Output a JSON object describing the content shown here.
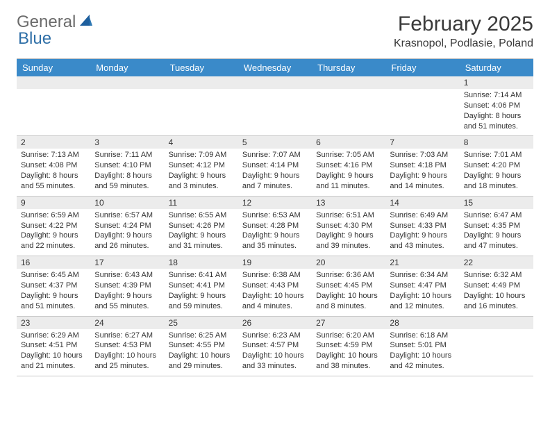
{
  "logo": {
    "word1": "General",
    "word2": "Blue",
    "sail_color": "#1e5f9e"
  },
  "title": {
    "month": "February 2025",
    "location": "Krasnopol, Podlasie, Poland"
  },
  "colors": {
    "header_bg": "#3a8ac9",
    "header_text": "#ffffff",
    "daynum_bg": "#ececec",
    "border": "#c8c8c8",
    "text": "#333333"
  },
  "weekdays": [
    "Sunday",
    "Monday",
    "Tuesday",
    "Wednesday",
    "Thursday",
    "Friday",
    "Saturday"
  ],
  "weeks": [
    [
      null,
      null,
      null,
      null,
      null,
      null,
      {
        "n": "1",
        "sr": "Sunrise: 7:14 AM",
        "ss": "Sunset: 4:06 PM",
        "dl": "Daylight: 8 hours and 51 minutes."
      }
    ],
    [
      {
        "n": "2",
        "sr": "Sunrise: 7:13 AM",
        "ss": "Sunset: 4:08 PM",
        "dl": "Daylight: 8 hours and 55 minutes."
      },
      {
        "n": "3",
        "sr": "Sunrise: 7:11 AM",
        "ss": "Sunset: 4:10 PM",
        "dl": "Daylight: 8 hours and 59 minutes."
      },
      {
        "n": "4",
        "sr": "Sunrise: 7:09 AM",
        "ss": "Sunset: 4:12 PM",
        "dl": "Daylight: 9 hours and 3 minutes."
      },
      {
        "n": "5",
        "sr": "Sunrise: 7:07 AM",
        "ss": "Sunset: 4:14 PM",
        "dl": "Daylight: 9 hours and 7 minutes."
      },
      {
        "n": "6",
        "sr": "Sunrise: 7:05 AM",
        "ss": "Sunset: 4:16 PM",
        "dl": "Daylight: 9 hours and 11 minutes."
      },
      {
        "n": "7",
        "sr": "Sunrise: 7:03 AM",
        "ss": "Sunset: 4:18 PM",
        "dl": "Daylight: 9 hours and 14 minutes."
      },
      {
        "n": "8",
        "sr": "Sunrise: 7:01 AM",
        "ss": "Sunset: 4:20 PM",
        "dl": "Daylight: 9 hours and 18 minutes."
      }
    ],
    [
      {
        "n": "9",
        "sr": "Sunrise: 6:59 AM",
        "ss": "Sunset: 4:22 PM",
        "dl": "Daylight: 9 hours and 22 minutes."
      },
      {
        "n": "10",
        "sr": "Sunrise: 6:57 AM",
        "ss": "Sunset: 4:24 PM",
        "dl": "Daylight: 9 hours and 26 minutes."
      },
      {
        "n": "11",
        "sr": "Sunrise: 6:55 AM",
        "ss": "Sunset: 4:26 PM",
        "dl": "Daylight: 9 hours and 31 minutes."
      },
      {
        "n": "12",
        "sr": "Sunrise: 6:53 AM",
        "ss": "Sunset: 4:28 PM",
        "dl": "Daylight: 9 hours and 35 minutes."
      },
      {
        "n": "13",
        "sr": "Sunrise: 6:51 AM",
        "ss": "Sunset: 4:30 PM",
        "dl": "Daylight: 9 hours and 39 minutes."
      },
      {
        "n": "14",
        "sr": "Sunrise: 6:49 AM",
        "ss": "Sunset: 4:33 PM",
        "dl": "Daylight: 9 hours and 43 minutes."
      },
      {
        "n": "15",
        "sr": "Sunrise: 6:47 AM",
        "ss": "Sunset: 4:35 PM",
        "dl": "Daylight: 9 hours and 47 minutes."
      }
    ],
    [
      {
        "n": "16",
        "sr": "Sunrise: 6:45 AM",
        "ss": "Sunset: 4:37 PM",
        "dl": "Daylight: 9 hours and 51 minutes."
      },
      {
        "n": "17",
        "sr": "Sunrise: 6:43 AM",
        "ss": "Sunset: 4:39 PM",
        "dl": "Daylight: 9 hours and 55 minutes."
      },
      {
        "n": "18",
        "sr": "Sunrise: 6:41 AM",
        "ss": "Sunset: 4:41 PM",
        "dl": "Daylight: 9 hours and 59 minutes."
      },
      {
        "n": "19",
        "sr": "Sunrise: 6:38 AM",
        "ss": "Sunset: 4:43 PM",
        "dl": "Daylight: 10 hours and 4 minutes."
      },
      {
        "n": "20",
        "sr": "Sunrise: 6:36 AM",
        "ss": "Sunset: 4:45 PM",
        "dl": "Daylight: 10 hours and 8 minutes."
      },
      {
        "n": "21",
        "sr": "Sunrise: 6:34 AM",
        "ss": "Sunset: 4:47 PM",
        "dl": "Daylight: 10 hours and 12 minutes."
      },
      {
        "n": "22",
        "sr": "Sunrise: 6:32 AM",
        "ss": "Sunset: 4:49 PM",
        "dl": "Daylight: 10 hours and 16 minutes."
      }
    ],
    [
      {
        "n": "23",
        "sr": "Sunrise: 6:29 AM",
        "ss": "Sunset: 4:51 PM",
        "dl": "Daylight: 10 hours and 21 minutes."
      },
      {
        "n": "24",
        "sr": "Sunrise: 6:27 AM",
        "ss": "Sunset: 4:53 PM",
        "dl": "Daylight: 10 hours and 25 minutes."
      },
      {
        "n": "25",
        "sr": "Sunrise: 6:25 AM",
        "ss": "Sunset: 4:55 PM",
        "dl": "Daylight: 10 hours and 29 minutes."
      },
      {
        "n": "26",
        "sr": "Sunrise: 6:23 AM",
        "ss": "Sunset: 4:57 PM",
        "dl": "Daylight: 10 hours and 33 minutes."
      },
      {
        "n": "27",
        "sr": "Sunrise: 6:20 AM",
        "ss": "Sunset: 4:59 PM",
        "dl": "Daylight: 10 hours and 38 minutes."
      },
      {
        "n": "28",
        "sr": "Sunrise: 6:18 AM",
        "ss": "Sunset: 5:01 PM",
        "dl": "Daylight: 10 hours and 42 minutes."
      },
      null
    ]
  ]
}
